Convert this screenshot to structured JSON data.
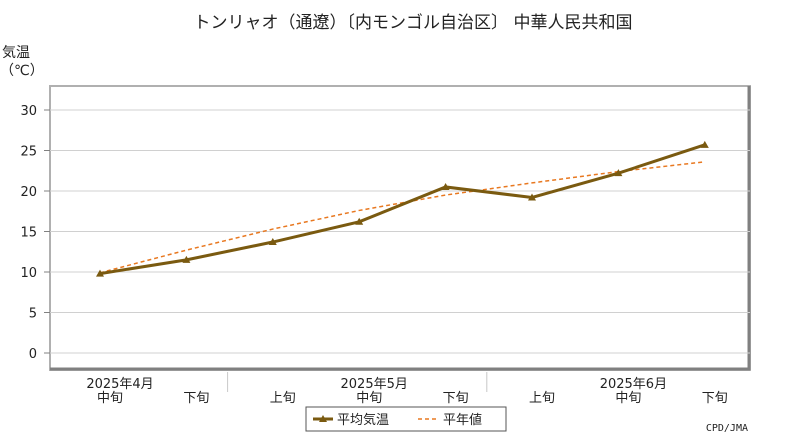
{
  "chart_data": {
    "type": "line",
    "title": "トンリャオ（通遼）〔内モンゴル自治区〕 中華人民共和国",
    "ylabel_line1": "気温",
    "ylabel_line2": "（℃）",
    "ylim": [
      -2,
      32
    ],
    "yticks": [
      0,
      5,
      10,
      15,
      20,
      25,
      30
    ],
    "grid": true,
    "x_months": [
      "2025年4月",
      "2025年5月",
      "2025年6月"
    ],
    "categories": [
      "中旬",
      "下旬",
      "上旬",
      "中旬",
      "下旬",
      "上旬",
      "中旬",
      "下旬"
    ],
    "series": [
      {
        "name": "平均気温",
        "values": [
          9.8,
          11.5,
          13.7,
          16.2,
          20.5,
          19.2,
          22.2,
          25.7
        ],
        "color": "#7a5a10",
        "style": "solid-marker"
      },
      {
        "name": "平年値",
        "values": [
          9.9,
          12.7,
          15.3,
          17.6,
          19.5,
          21.0,
          22.4,
          23.6
        ],
        "color": "#e87820",
        "style": "dashed"
      }
    ],
    "legend_placement": "bottom-center",
    "credit": "CPD/JMA"
  },
  "colors": {
    "axis": "#808080",
    "grid": "#d0d0d0",
    "frame": "#b0b0b0"
  }
}
